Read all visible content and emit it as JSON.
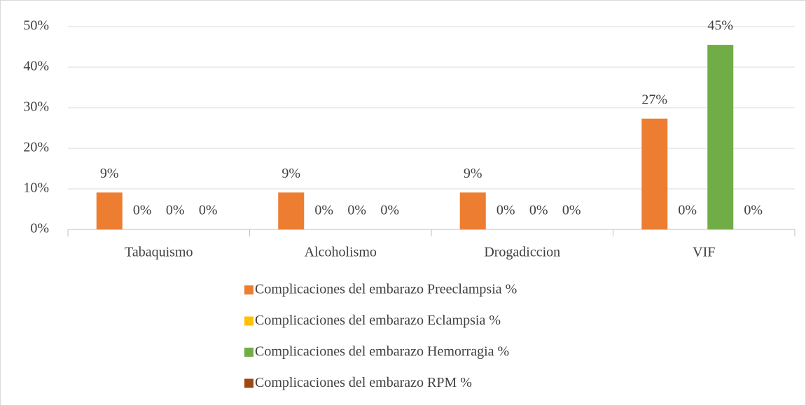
{
  "chart_data": {
    "type": "bar",
    "categories": [
      "Tabaquismo",
      "Alcoholismo",
      "Drogadiccion",
      "VIF"
    ],
    "series": [
      {
        "name": "Complicaciones del embarazo Preeclampsia %",
        "color": "#ed7d31",
        "values": [
          9.1,
          9.1,
          9.1,
          27.3
        ],
        "value_labels": [
          "9%",
          "9%",
          "9%",
          "27%"
        ]
      },
      {
        "name": "Complicaciones del embarazo Eclampsia %",
        "color": "#ffc000",
        "values": [
          0,
          0,
          0,
          0
        ],
        "value_labels": [
          "0%",
          "0%",
          "0%",
          "0%"
        ]
      },
      {
        "name": "Complicaciones del embarazo Hemorragia %",
        "color": "#70ad47",
        "values": [
          0,
          0,
          0,
          45.5
        ],
        "value_labels": [
          "0%",
          "0%",
          "0%",
          "45%"
        ]
      },
      {
        "name": "Complicaciones del embarazo RPM %",
        "color": "#9e480e",
        "values": [
          0,
          0,
          0,
          0
        ],
        "value_labels": [
          "0%",
          "0%",
          "0%",
          "0%"
        ]
      }
    ],
    "ylim": [
      0,
      50
    ],
    "yticks": [
      {
        "value": 0,
        "label": "0%"
      },
      {
        "value": 10,
        "label": "10%"
      },
      {
        "value": 20,
        "label": "20%"
      },
      {
        "value": 30,
        "label": "30%"
      },
      {
        "value": 40,
        "label": "40%"
      },
      {
        "value": 50,
        "label": "50%"
      }
    ],
    "grid": true,
    "legend": "bottom"
  }
}
